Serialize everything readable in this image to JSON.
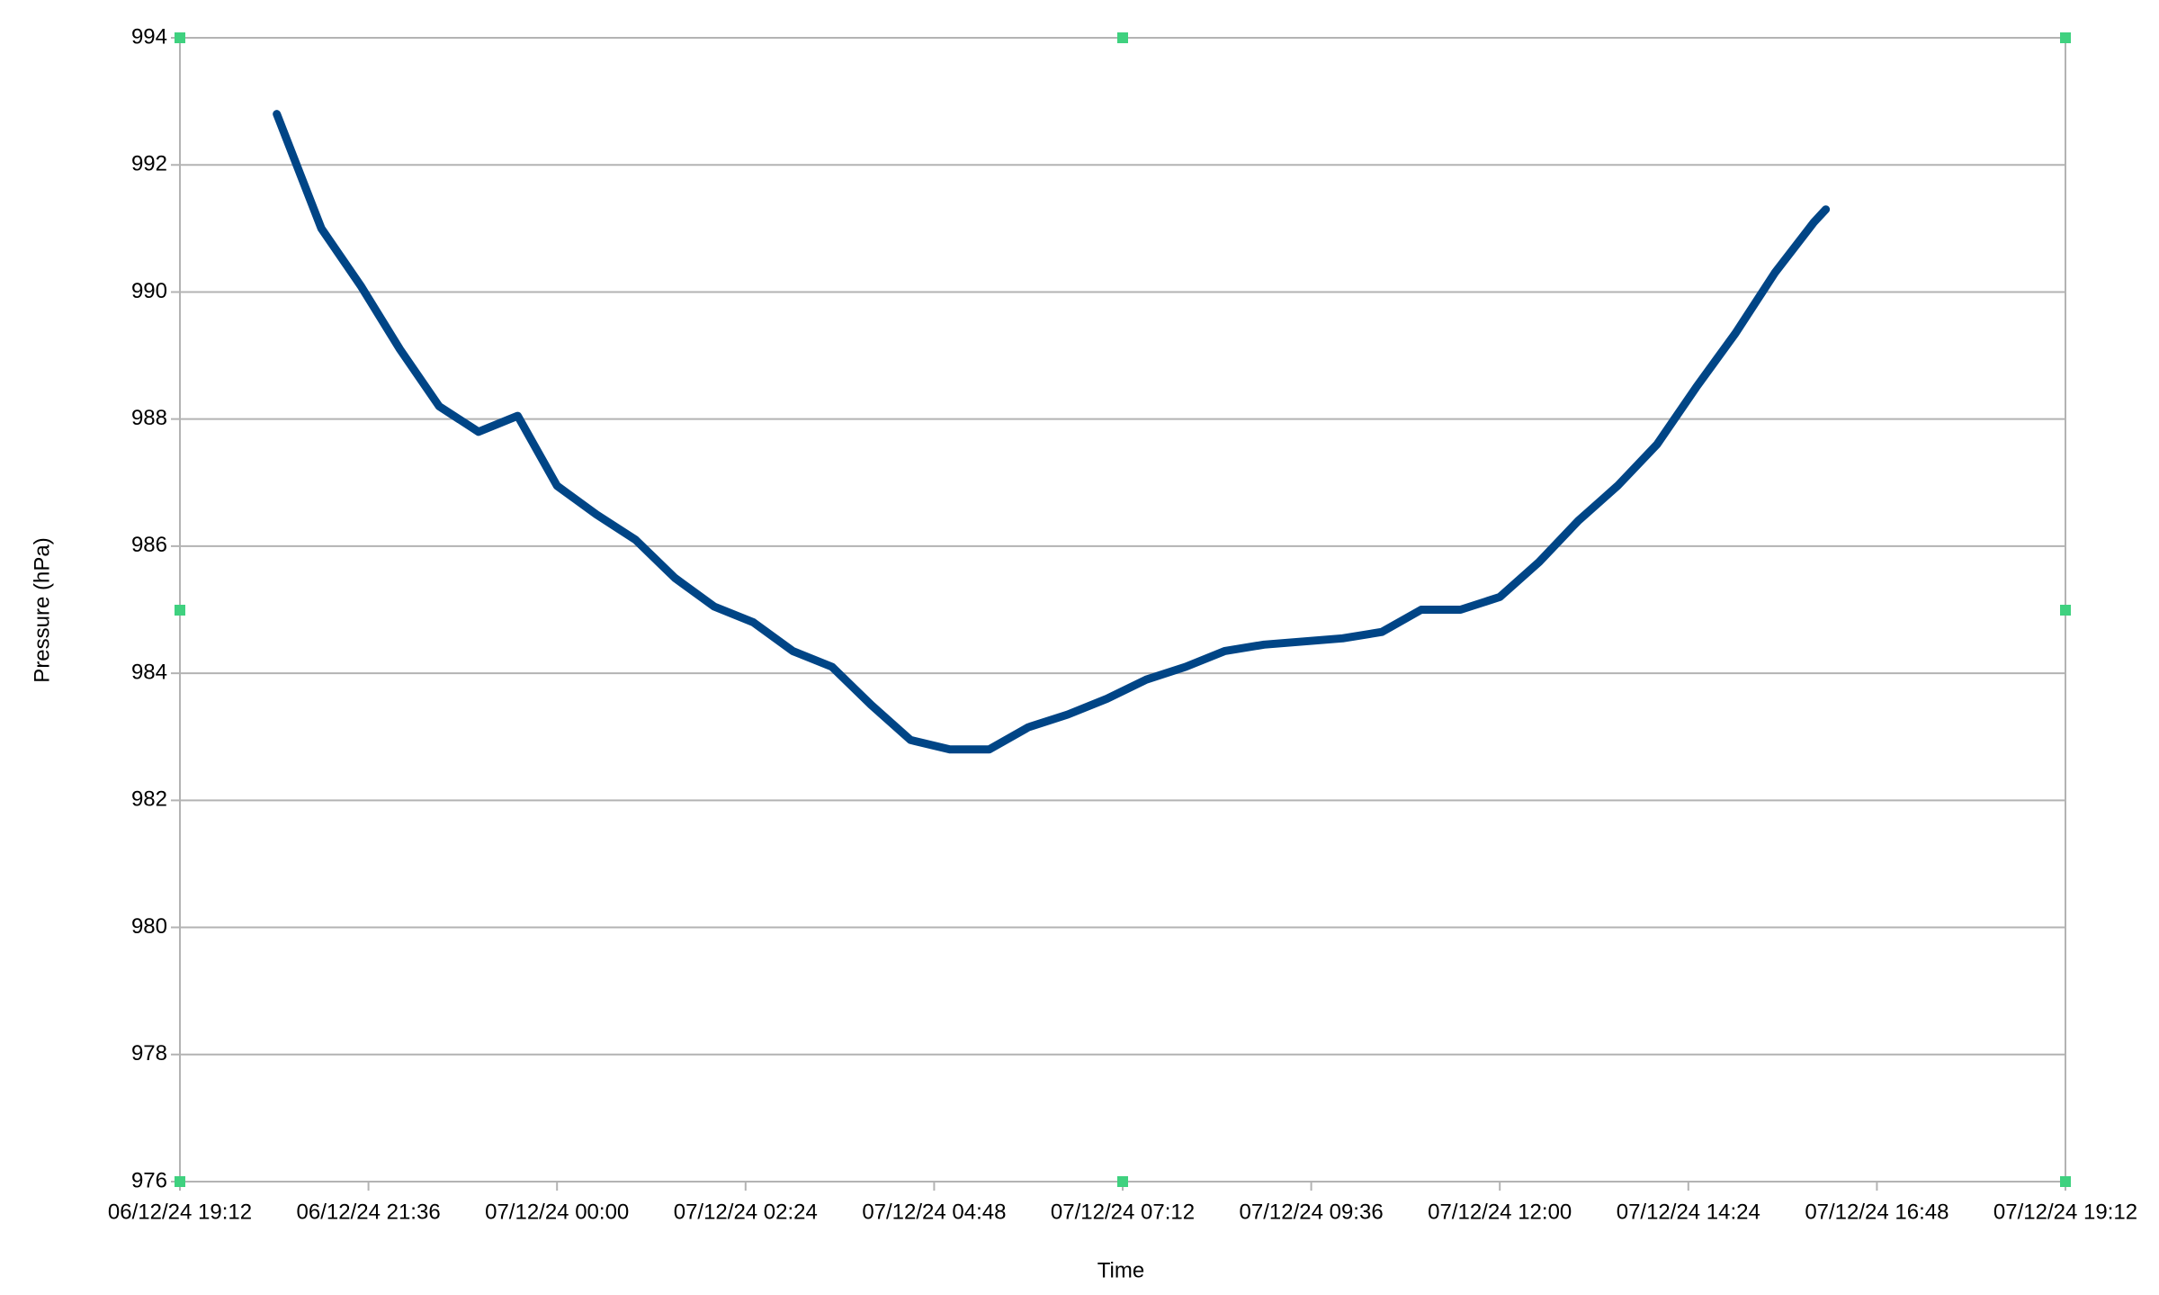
{
  "chart_data": {
    "type": "line",
    "x_label": "Time",
    "y_label": "Pressure (hPa)",
    "x": [
      "06/12/24 20:26",
      "06/12/24 21:00",
      "06/12/24 21:30",
      "06/12/24 22:00",
      "06/12/24 22:30",
      "06/12/24 23:00",
      "06/12/24 23:30",
      "07/12/24 00:00",
      "07/12/24 00:30",
      "07/12/24 01:00",
      "07/12/24 01:30",
      "07/12/24 02:00",
      "07/12/24 02:30",
      "07/12/24 03:00",
      "07/12/24 03:30",
      "07/12/24 04:00",
      "07/12/24 04:30",
      "07/12/24 05:00",
      "07/12/24 05:30",
      "07/12/24 06:00",
      "07/12/24 06:30",
      "07/12/24 07:00",
      "07/12/24 07:30",
      "07/12/24 08:00",
      "07/12/24 08:30",
      "07/12/24 09:00",
      "07/12/24 09:30",
      "07/12/24 10:00",
      "07/12/24 10:30",
      "07/12/24 11:00",
      "07/12/24 11:30",
      "07/12/24 12:00",
      "07/12/24 12:30",
      "07/12/24 13:00",
      "07/12/24 13:30",
      "07/12/24 14:00",
      "07/12/24 14:30",
      "07/12/24 15:00",
      "07/12/24 15:30",
      "07/12/24 16:00",
      "07/12/24 16:09"
    ],
    "values": [
      992.8,
      991.0,
      990.1,
      989.1,
      988.2,
      987.8,
      988.05,
      986.95,
      986.5,
      986.1,
      985.5,
      985.05,
      984.8,
      984.35,
      984.1,
      983.5,
      982.95,
      982.8,
      982.8,
      983.15,
      983.35,
      983.6,
      983.9,
      984.1,
      984.35,
      984.45,
      984.5,
      984.55,
      984.65,
      985.0,
      985.0,
      985.2,
      985.75,
      986.4,
      986.95,
      987.6,
      988.5,
      989.35,
      990.3,
      991.1,
      991.3
    ],
    "color": "#004586",
    "xlim": [
      "06/12/24 19:12",
      "07/12/24 19:12"
    ],
    "xticks": [
      "06/12/24 19:12",
      "06/12/24 21:36",
      "07/12/24 00:00",
      "07/12/24 02:24",
      "07/12/24 04:48",
      "07/12/24 07:12",
      "07/12/24 09:36",
      "07/12/24 12:00",
      "07/12/24 14:24",
      "07/12/24 16:48",
      "07/12/24 19:12"
    ],
    "ylim": [
      976,
      994
    ],
    "yticks": [
      976,
      978,
      980,
      982,
      984,
      986,
      988,
      990,
      992,
      994
    ],
    "grid": true
  }
}
